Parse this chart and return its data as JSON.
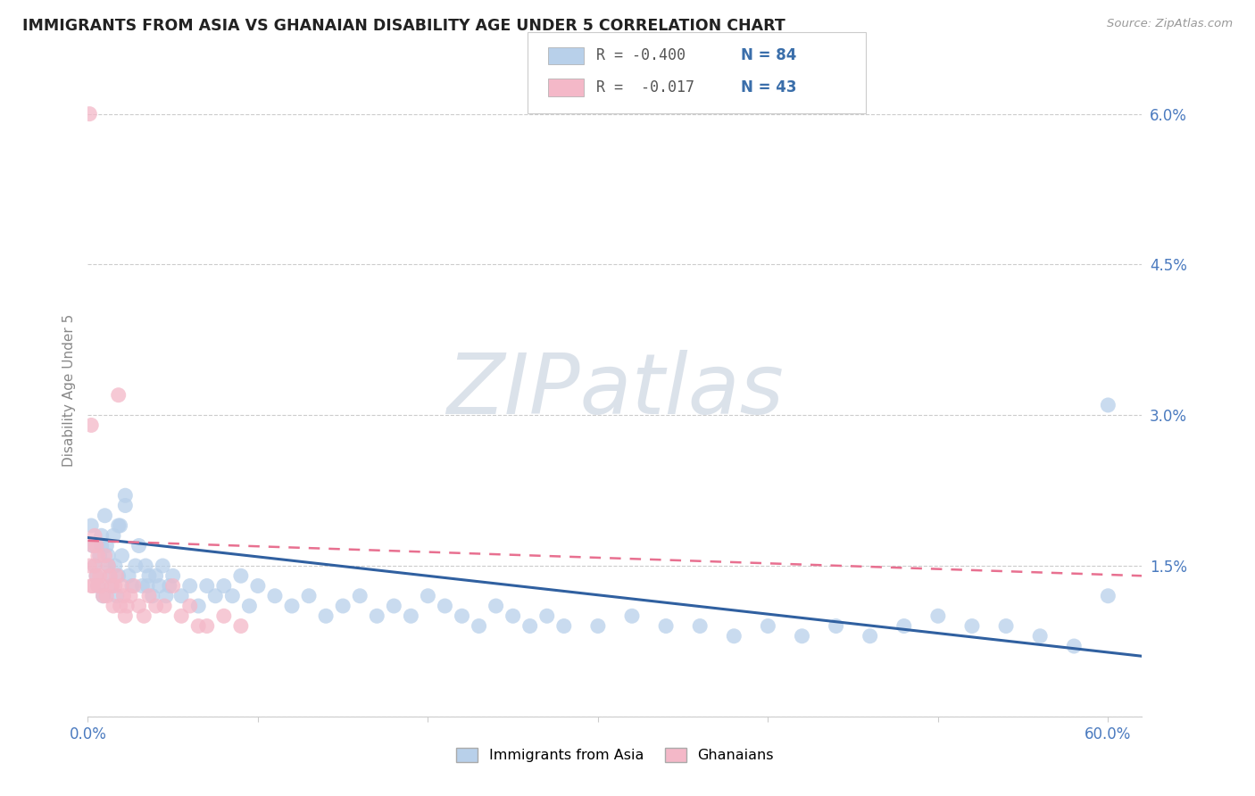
{
  "title": "IMMIGRANTS FROM ASIA VS GHANAIAN DISABILITY AGE UNDER 5 CORRELATION CHART",
  "source": "Source: ZipAtlas.com",
  "ylabel": "Disability Age Under 5",
  "ytick_vals": [
    0.0,
    0.015,
    0.03,
    0.045,
    0.06
  ],
  "ytick_labels": [
    "",
    "1.5%",
    "3.0%",
    "4.5%",
    "6.0%"
  ],
  "xtick_vals": [
    0.0,
    0.1,
    0.2,
    0.3,
    0.4,
    0.5,
    0.6
  ],
  "xtick_labels": [
    "0.0%",
    "",
    "",
    "",
    "",
    "",
    "60.0%"
  ],
  "xlim": [
    0.0,
    0.62
  ],
  "ylim": [
    0.0,
    0.065
  ],
  "legend_r1": "R = -0.400",
  "legend_n1": "N = 84",
  "legend_r2": "R =  -0.017",
  "legend_n2": "N = 43",
  "color_asia": "#b8d0ea",
  "color_ghana": "#f4b8c8",
  "color_asia_line": "#3060a0",
  "color_ghana_line": "#e87090",
  "watermark_color": "#d8dfe8",
  "asia_x": [
    0.002,
    0.003,
    0.004,
    0.005,
    0.006,
    0.007,
    0.008,
    0.009,
    0.01,
    0.011,
    0.012,
    0.013,
    0.014,
    0.015,
    0.016,
    0.017,
    0.018,
    0.019,
    0.02,
    0.022,
    0.024,
    0.026,
    0.028,
    0.03,
    0.032,
    0.034,
    0.036,
    0.038,
    0.04,
    0.042,
    0.044,
    0.046,
    0.048,
    0.05,
    0.055,
    0.06,
    0.065,
    0.07,
    0.075,
    0.08,
    0.085,
    0.09,
    0.095,
    0.1,
    0.11,
    0.12,
    0.13,
    0.14,
    0.15,
    0.16,
    0.17,
    0.18,
    0.19,
    0.2,
    0.21,
    0.22,
    0.23,
    0.24,
    0.25,
    0.26,
    0.27,
    0.28,
    0.3,
    0.32,
    0.34,
    0.36,
    0.38,
    0.4,
    0.42,
    0.44,
    0.46,
    0.48,
    0.5,
    0.52,
    0.54,
    0.56,
    0.58,
    0.6,
    0.035,
    0.022,
    0.018,
    0.012,
    0.008,
    0.6
  ],
  "asia_y": [
    0.019,
    0.017,
    0.015,
    0.014,
    0.013,
    0.016,
    0.018,
    0.012,
    0.02,
    0.017,
    0.016,
    0.014,
    0.013,
    0.018,
    0.015,
    0.012,
    0.014,
    0.019,
    0.016,
    0.022,
    0.014,
    0.013,
    0.015,
    0.017,
    0.013,
    0.015,
    0.014,
    0.012,
    0.014,
    0.013,
    0.015,
    0.012,
    0.013,
    0.014,
    0.012,
    0.013,
    0.011,
    0.013,
    0.012,
    0.013,
    0.012,
    0.014,
    0.011,
    0.013,
    0.012,
    0.011,
    0.012,
    0.01,
    0.011,
    0.012,
    0.01,
    0.011,
    0.01,
    0.012,
    0.011,
    0.01,
    0.009,
    0.011,
    0.01,
    0.009,
    0.01,
    0.009,
    0.009,
    0.01,
    0.009,
    0.009,
    0.008,
    0.009,
    0.008,
    0.009,
    0.008,
    0.009,
    0.01,
    0.009,
    0.009,
    0.008,
    0.007,
    0.012,
    0.013,
    0.021,
    0.019,
    0.015,
    0.017,
    0.031
  ],
  "ghana_x": [
    0.001,
    0.001,
    0.002,
    0.002,
    0.003,
    0.003,
    0.004,
    0.004,
    0.005,
    0.005,
    0.006,
    0.006,
    0.007,
    0.008,
    0.009,
    0.01,
    0.011,
    0.012,
    0.013,
    0.014,
    0.015,
    0.016,
    0.017,
    0.018,
    0.019,
    0.02,
    0.021,
    0.022,
    0.023,
    0.025,
    0.027,
    0.03,
    0.033,
    0.036,
    0.04,
    0.045,
    0.05,
    0.055,
    0.06,
    0.065,
    0.07,
    0.08,
    0.09
  ],
  "ghana_y": [
    0.06,
    0.015,
    0.029,
    0.013,
    0.017,
    0.013,
    0.018,
    0.015,
    0.017,
    0.014,
    0.013,
    0.016,
    0.014,
    0.013,
    0.012,
    0.016,
    0.012,
    0.015,
    0.014,
    0.013,
    0.011,
    0.013,
    0.014,
    0.032,
    0.011,
    0.013,
    0.012,
    0.01,
    0.011,
    0.012,
    0.013,
    0.011,
    0.01,
    0.012,
    0.011,
    0.011,
    0.013,
    0.01,
    0.011,
    0.009,
    0.009,
    0.01,
    0.009
  ],
  "asia_trend_x0": 0.0,
  "asia_trend_y0": 0.0178,
  "asia_trend_x1": 0.62,
  "asia_trend_y1": 0.006,
  "ghana_trend_x0": 0.0,
  "ghana_trend_y0": 0.0175,
  "ghana_trend_x1": 0.62,
  "ghana_trend_y1": 0.014
}
